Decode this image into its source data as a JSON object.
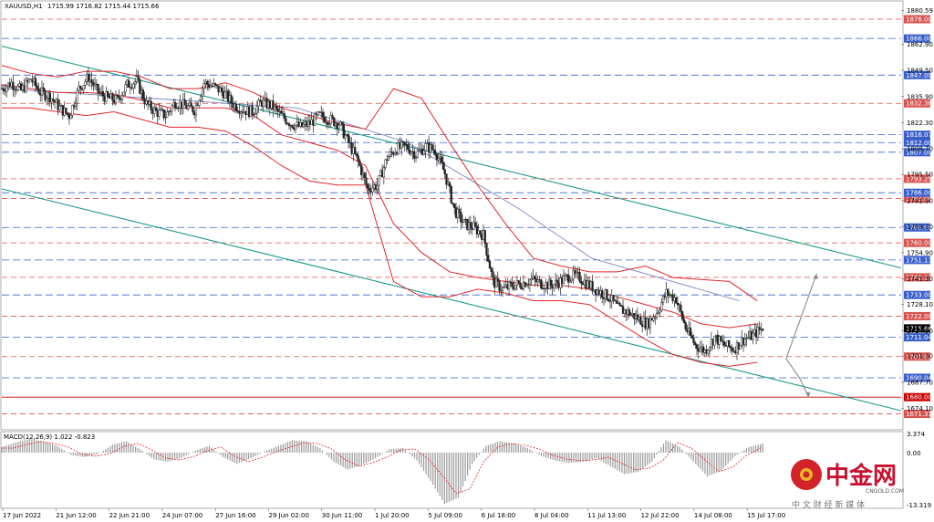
{
  "header": {
    "symbol": "XAUUSD,H1",
    "ohlc": "1715.99 1716.82 1715.44 1715.66"
  },
  "macd_header": "MACD(12,26,9) 1.022 -0.823",
  "watermark": {
    "brand": "中金网",
    "site": "CNGOLD.COM",
    "tagline": "中 文 财 经 新 媒 体"
  },
  "colors": {
    "resistance": "#d9534f",
    "support": "#3a5fcd",
    "bollinger": "#e0282e",
    "channel": "#1a9a8a",
    "ma_blue": "#8088c8",
    "candles": "#222222",
    "current_price_bg": "#000000",
    "arrows": "#8a8a8a"
  },
  "chart_data": {
    "type": "candlestick",
    "symbol": "XAUUSD",
    "timeframe": "H1",
    "ylim": [
      1664,
      1885
    ],
    "y_ticks": [
      "1880.59",
      "1862.90",
      "1849.50",
      "1835.90",
      "1822.30",
      "1808.70",
      "1795.50",
      "1781.90",
      "1768.30",
      "1754.90",
      "1741.30",
      "1728.10",
      "1714.50",
      "1701.30",
      "1687.70",
      "1674.10"
    ],
    "x_labels": [
      "17 Jun 2022",
      "21 Jun 12:00",
      "22 Jun 21:00",
      "24 Jun 07:00",
      "27 Jun 16:00",
      "29 Jun 02:00",
      "30 Jun 11:00",
      "1 Jul 20:00",
      "5 Jul 09:00",
      "6 Jul 18:00",
      "8 Jul 04:00",
      "11 Jul 13:00",
      "12 Jul 22:00",
      "14 Jul 08:00",
      "15 Jul 17:00"
    ],
    "resistance_levels": [
      "1876.00",
      "1832.36",
      "1793.25",
      "1783.00",
      "1760.00",
      "1742.13",
      "1722.00",
      "1701.03",
      "1671.31"
    ],
    "support_levels": [
      "1866.00",
      "1847.00",
      "1816.07",
      "1812.00",
      "1807.00",
      "1786.00",
      "1768.00",
      "1751.13",
      "1733.00",
      "1711.04",
      "1690.04"
    ],
    "key_level": "1680.00",
    "current_price": "1715.66",
    "price_path": [
      1840,
      1843,
      1839,
      1845,
      1838,
      1836,
      1830,
      1826,
      1840,
      1846,
      1838,
      1835,
      1834,
      1842,
      1844,
      1832,
      1828,
      1826,
      1833,
      1831,
      1829,
      1843,
      1841,
      1838,
      1832,
      1829,
      1828,
      1833,
      1831,
      1826,
      1822,
      1820,
      1822,
      1826,
      1824,
      1822,
      1812,
      1802,
      1788,
      1790,
      1804,
      1809,
      1810,
      1806,
      1810,
      1808,
      1796,
      1777,
      1770,
      1768,
      1764,
      1740,
      1736,
      1738,
      1739,
      1741,
      1739,
      1738,
      1740,
      1743,
      1742,
      1738,
      1735,
      1732,
      1726,
      1724,
      1721,
      1718,
      1724,
      1734,
      1731,
      1716,
      1707,
      1704,
      1711,
      1707,
      1705,
      1710,
      1712,
      1716
    ],
    "channel_upper": [
      [
        0,
        1862
      ],
      [
        1,
        1747
      ]
    ],
    "channel_lower": [
      [
        0,
        1788
      ],
      [
        1,
        1673
      ]
    ],
    "boll_upper": [
      1852,
      1848,
      1846,
      1849,
      1849,
      1846,
      1840,
      1840,
      1843,
      1838,
      1830,
      1826,
      1822,
      1819,
      1840,
      1835,
      1812,
      1790,
      1770,
      1752,
      1748,
      1745,
      1745,
      1748,
      1742,
      1741,
      1740,
      1730
    ],
    "boll_middle": [
      1842,
      1840,
      1838,
      1838,
      1837,
      1834,
      1830,
      1830,
      1830,
      1826,
      1816,
      1812,
      1808,
      1800,
      1770,
      1755,
      1745,
      1742,
      1740,
      1738,
      1738,
      1736,
      1732,
      1728,
      1724,
      1718,
      1716,
      1718
    ],
    "boll_lower": [
      1830,
      1830,
      1828,
      1826,
      1828,
      1824,
      1820,
      1820,
      1818,
      1810,
      1800,
      1792,
      1790,
      1790,
      1740,
      1732,
      1732,
      1736,
      1734,
      1730,
      1730,
      1728,
      1719,
      1710,
      1702,
      1698,
      1696,
      1698
    ],
    "ma_blue": [
      [
        0,
        1840
      ],
      [
        0.4,
        1830
      ],
      [
        0.55,
        1812
      ],
      [
        0.7,
        1778
      ],
      [
        0.8,
        1752
      ],
      [
        1,
        1730
      ]
    ],
    "projection": {
      "base": 1700,
      "up_to": 1744,
      "down_to": 1680
    },
    "macd_values": [
      1.0,
      1.8,
      2.4,
      2.0,
      1.2,
      -0.4,
      -0.8,
      -0.2,
      1.4,
      2.0,
      0.6,
      -1.2,
      -1.6,
      -0.9,
      0.4,
      1.2,
      -0.8,
      -2.0,
      -1.0,
      0.2,
      1.2,
      2.2,
      2.0,
      0.8,
      -1.6,
      -3.0,
      -2.2,
      -1.0,
      0.6,
      0.8,
      -1.4,
      -5.0,
      -9.0,
      -8.0,
      -2.0,
      1.2,
      2.0,
      1.6,
      0.8,
      -0.6,
      -1.4,
      -1.8,
      -1.6,
      -1.0,
      -2.4,
      -3.8,
      -3.4,
      -1.6,
      2.2,
      1.0,
      -1.6,
      -4.2,
      -3.2,
      -0.6,
      1.0,
      1.6
    ],
    "macd_ylim": [
      -9.5,
      3.374
    ],
    "macd_ticks": [
      "3.374",
      "0.00",
      "-13.319"
    ]
  }
}
